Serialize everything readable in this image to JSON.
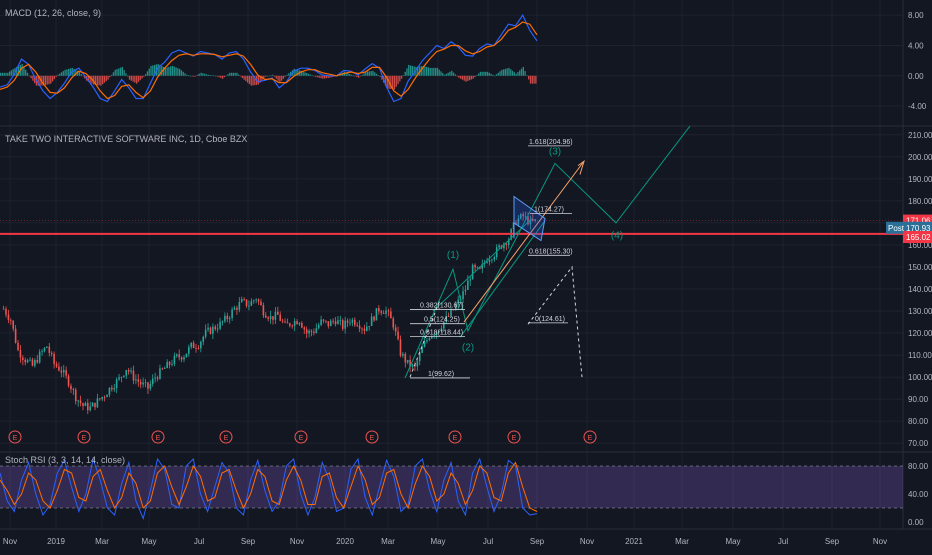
{
  "chart_data": [
    {
      "type": "line",
      "pane": "macd",
      "title": "MACD (12, 26, close, 9)",
      "yticks": [
        "8.00",
        "4.00",
        "0.00",
        "-4.00"
      ],
      "ylim": [
        -6.5,
        10
      ],
      "series": [
        {
          "values": [
            -1.5,
            -1.2,
            0.2,
            2.2,
            1.5,
            -0.5,
            -2.0,
            -3.0,
            -2.2,
            -1.0,
            0.5,
            1.0,
            -0.2,
            -1.5,
            -3.0,
            -3.4,
            -2.0,
            -0.5,
            -1.6,
            -3.0,
            -3.0,
            -1.0,
            1.0,
            1.8,
            3.0,
            3.4,
            3.0,
            2.6,
            3.2,
            3.0,
            2.8,
            2.2,
            3.0,
            3.2,
            2.2,
            0.5,
            -0.8,
            -0.6,
            -0.3,
            -1.6,
            -0.8,
            0.6,
            1.0,
            1.0,
            0.7,
            0.1,
            0.0,
            0.0,
            0.7,
            0.6,
            0.1,
            0.9,
            1.6,
            1.0,
            -1.5,
            -3.4,
            -3.0,
            -0.7,
            0.6,
            2.0,
            3.0,
            4.0,
            3.6,
            4.5,
            3.8,
            2.7,
            2.6,
            3.6,
            4.2,
            4.0,
            5.4,
            6.8,
            6.6,
            8.0,
            6.0,
            4.6
          ]
        },
        {
          "values": [
            -1.8,
            -1.5,
            -0.6,
            1.0,
            1.5,
            0.5,
            -1.0,
            -2.2,
            -2.3,
            -1.6,
            -0.3,
            0.6,
            0.3,
            -0.6,
            -2.0,
            -3.0,
            -2.6,
            -1.4,
            -1.2,
            -2.2,
            -2.9,
            -2.0,
            -0.2,
            1.0,
            2.0,
            2.7,
            2.9,
            2.7,
            2.9,
            2.9,
            2.8,
            2.5,
            2.7,
            2.9,
            2.6,
            1.5,
            0.1,
            -0.5,
            -0.4,
            -0.9,
            -0.9,
            -0.1,
            0.5,
            0.8,
            0.8,
            0.4,
            0.2,
            0.0,
            0.3,
            0.5,
            0.3,
            0.5,
            1.1,
            1.1,
            -0.2,
            -2.0,
            -2.7,
            -1.8,
            -0.3,
            1.0,
            2.2,
            3.2,
            3.5,
            4.0,
            4.0,
            3.3,
            2.9,
            3.2,
            3.8,
            4.0,
            4.8,
            6.0,
            6.4,
            7.1,
            6.8,
            5.4
          ]
        }
      ]
    },
    {
      "type": "candlestick",
      "pane": "price",
      "title": "TAKE TWO INTERACTIVE SOFTWARE INC, 1D, Cboe BZX",
      "xlabels": [
        "Nov",
        "2019",
        "Mar",
        "May",
        "Jul",
        "Sep",
        "Nov",
        "2020",
        "Mar",
        "May",
        "Jul",
        "Sep",
        "Nov",
        "2021",
        "Mar",
        "May",
        "Jul",
        "Sep",
        "Nov"
      ],
      "yticks": [
        "210.00",
        "200.00",
        "190.00",
        "180.00",
        "170.00",
        "160.00",
        "150.00",
        "140.00",
        "130.00",
        "120.00",
        "110.00",
        "100.00",
        "90.00",
        "80.00",
        "70.00"
      ],
      "ylim": [
        66,
        214
      ],
      "close_path": [
        131,
        126,
        112,
        108,
        105,
        110,
        114,
        106,
        103,
        98,
        91,
        87,
        86,
        89,
        92,
        96,
        99,
        104,
        100,
        97,
        95,
        100,
        103,
        106,
        109,
        110,
        114,
        115,
        120,
        122,
        124,
        127,
        131,
        134,
        133,
        136,
        130,
        127,
        128,
        123,
        125,
        126,
        120,
        121,
        125,
        124,
        126,
        123,
        126,
        125,
        122,
        126,
        131,
        130,
        124,
        111,
        106,
        104,
        113,
        119,
        121,
        125,
        129,
        134,
        140,
        149,
        148,
        154,
        156,
        160,
        163,
        171,
        173,
        170,
        171
      ],
      "price_labels": [
        {
          "text": "171.06",
          "color": "#f23645"
        },
        {
          "text": "Post",
          "color": "#2a6f97"
        },
        {
          "text": "170.93",
          "color": "#2a6f97"
        },
        {
          "text": "165.02",
          "color": "#f23645"
        }
      ],
      "fib_levels": [
        "1.618(204.96)",
        "1(174.27)",
        "0.618(155.30)",
        "0.382(130.67)",
        "0.5(124.25)",
        "0.618(118.44)",
        "1(99.62)",
        "0(124.61)"
      ],
      "wave_labels": [
        "(1)",
        "(2)",
        "(3)",
        "(4)"
      ],
      "earnings_marker": "E",
      "earnings_count": 9
    },
    {
      "type": "line",
      "pane": "stoch-rsi",
      "title": "Stoch RSI (3, 3, 14, 14, close)",
      "yticks": [
        "80.00",
        "40.00",
        "0.00"
      ],
      "ylim": [
        -10,
        100
      ],
      "band": [
        20,
        80
      ],
      "series": [
        {
          "values": [
            70,
            30,
            15,
            60,
            85,
            40,
            10,
            25,
            70,
            88,
            50,
            15,
            40,
            90,
            60,
            20,
            10,
            55,
            85,
            30,
            5,
            45,
            90,
            75,
            25,
            20,
            80,
            90,
            40,
            15,
            50,
            85,
            70,
            20,
            10,
            60,
            88,
            45,
            15,
            30,
            80,
            90,
            40,
            10,
            35,
            85,
            60,
            15,
            20,
            75,
            90,
            35,
            10,
            50,
            88,
            65,
            15,
            25,
            80,
            90,
            45,
            15,
            60,
            85,
            30,
            10,
            70,
            90,
            50,
            15,
            40,
            88,
            80,
            20,
            10,
            12
          ]
        },
        {
          "values": [
            60,
            45,
            25,
            40,
            70,
            60,
            30,
            20,
            45,
            75,
            70,
            35,
            30,
            65,
            75,
            45,
            20,
            35,
            70,
            55,
            20,
            30,
            70,
            80,
            50,
            25,
            50,
            80,
            65,
            30,
            35,
            70,
            75,
            45,
            20,
            40,
            75,
            65,
            30,
            25,
            60,
            80,
            60,
            25,
            25,
            65,
            70,
            35,
            20,
            50,
            80,
            60,
            25,
            35,
            70,
            75,
            40,
            20,
            55,
            80,
            65,
            30,
            40,
            70,
            55,
            25,
            45,
            80,
            70,
            35,
            30,
            70,
            85,
            50,
            20,
            15
          ]
        }
      ]
    }
  ]
}
